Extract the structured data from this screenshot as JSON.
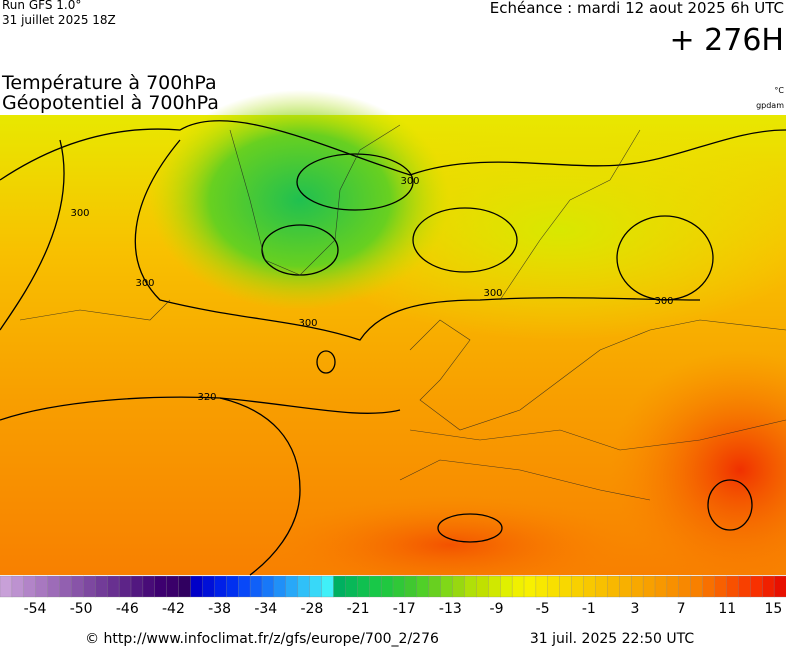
{
  "header": {
    "run": "Run GFS 1.0°",
    "run_date": "31 juillet 2025 18Z",
    "valid": "Echéance : mardi 12 aout 2025 6h UTC",
    "lead": "+ 276H",
    "title_line1": "Température à 700hPa",
    "title_line2": "Géopotentiel à 700hPa",
    "unit_temp": "°C",
    "unit_geo": "gpdam"
  },
  "map": {
    "contour_labels": [
      "300",
      "300",
      "300",
      "300",
      "300",
      "300",
      "320"
    ]
  },
  "colorbar": {
    "labels": [
      "-54",
      "-50",
      "-46",
      "-42",
      "-38",
      "-34",
      "-28",
      "-21",
      "-17",
      "-13",
      "-9",
      "-5",
      "-1",
      "3",
      "7",
      "11",
      "15"
    ],
    "colors": [
      "#c8a0d8",
      "#bd92d0",
      "#b284c8",
      "#a878c0",
      "#9d6cb8",
      "#9260b0",
      "#8854a8",
      "#7d48a0",
      "#723c98",
      "#683090",
      "#5d2488",
      "#521880",
      "#480c78",
      "#3d0070",
      "#3a006a",
      "#300060",
      "#0000c8",
      "#0010d8",
      "#0020e8",
      "#0030f0",
      "#0848f8",
      "#1060f8",
      "#1878f8",
      "#2090f8",
      "#28a8f8",
      "#30c0f8",
      "#38d8f8",
      "#40f0f8",
      "#00b060",
      "#08b858",
      "#10c050",
      "#18c848",
      "#20c840",
      "#30c838",
      "#40c830",
      "#50d028",
      "#68d020",
      "#80d818",
      "#98d810",
      "#b0e008",
      "#c0e000",
      "#d0e800",
      "#e0f000",
      "#f0f000",
      "#f8f000",
      "#f8e800",
      "#f8e000",
      "#f8d800",
      "#f8d000",
      "#f8c800",
      "#f8c000",
      "#f8b800",
      "#f8b000",
      "#f8a800",
      "#f8a000",
      "#f89800",
      "#f89000",
      "#f88800",
      "#f88000",
      "#f87000",
      "#f86000",
      "#f85000",
      "#f84000",
      "#f83000",
      "#f02000",
      "#e81000"
    ]
  },
  "footer": {
    "source": "© http://www.infoclimat.fr/z/gfs/europe/700_2/276",
    "generated": "31 juil. 2025 22:50 UTC"
  }
}
